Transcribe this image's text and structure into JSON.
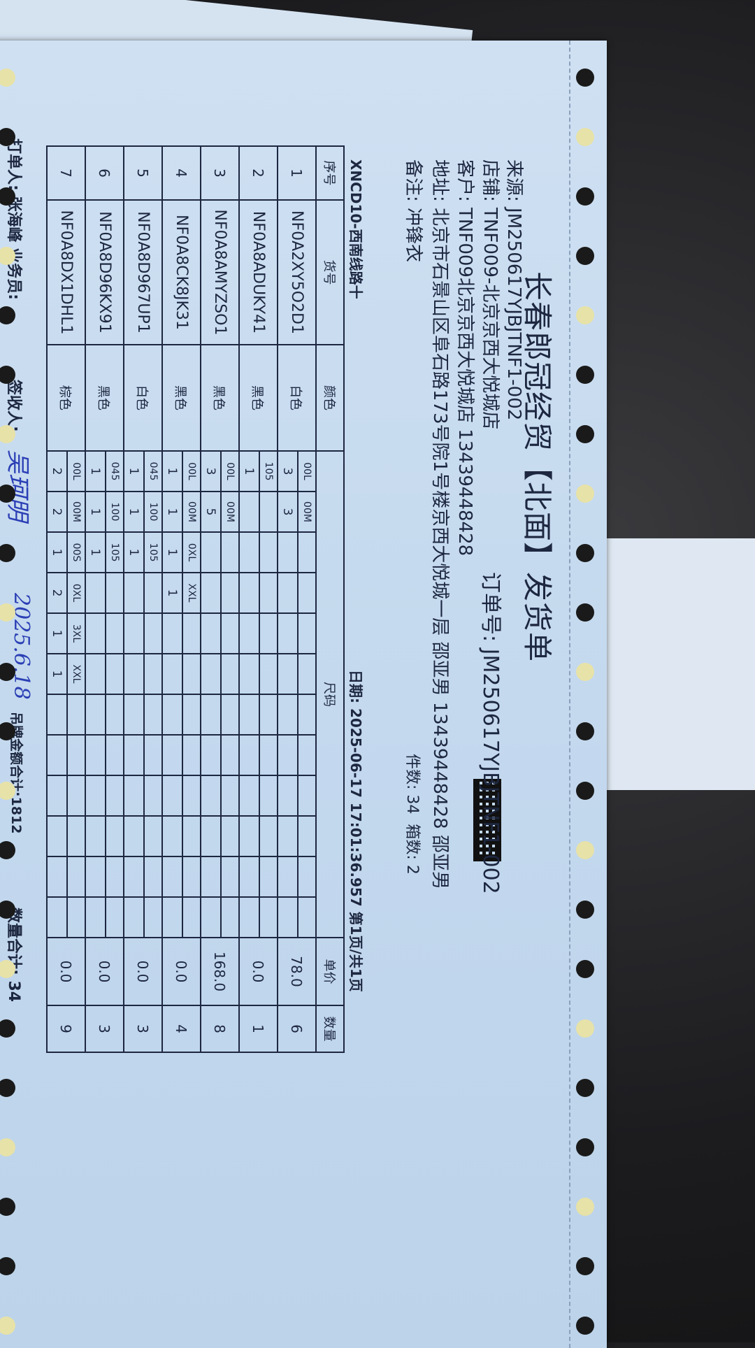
{
  "document": {
    "title": "长春郎冠经贸【北面】发货单",
    "order_no_label": "订单号:",
    "order_no": "JM250617YJBJTNF1-002",
    "source_label": "来源:",
    "source": "JM250617YJBJTNF1-002",
    "store_label": "店铺:",
    "store": "TNF009-北京京西大悦城店",
    "customer_label": "客户:",
    "customer": "TNF009北京京西大悦城店 13439448428",
    "address_label": "地址:",
    "address": "北京市石景山区阜石路173号院1号楼京西大悦城一层 邵亚男 13439448428 邵亚男",
    "remark_label": "备注:",
    "remark": "冲锋衣",
    "pieces_label": "件数:",
    "pieces": "34",
    "boxes_label": "箱数:",
    "boxes": "2",
    "route": "XNCD10-西南线路十",
    "date_label": "日期:",
    "date": "2025-06-17 17:01:36.957",
    "page": "第1页/共1页"
  },
  "table": {
    "headers": {
      "no": "序号",
      "sku": "货号",
      "color": "颜色",
      "size": "尺码",
      "price": "单价",
      "qty": "数量"
    },
    "items": [
      {
        "no": "1",
        "sku": "NF0A2XY5O2D1",
        "color": "白色",
        "sizes": [
          {
            "s": "00L",
            "q": "3"
          },
          {
            "s": "00M",
            "q": "3"
          }
        ],
        "price": "78.0",
        "qty": "6"
      },
      {
        "no": "2",
        "sku": "NF0A8ADUKY41",
        "color": "黑色",
        "sizes": [
          {
            "s": "105",
            "q": "1"
          }
        ],
        "price": "0.0",
        "qty": "1"
      },
      {
        "no": "3",
        "sku": "NF0A8AMYZSO1",
        "color": "黑色",
        "sizes": [
          {
            "s": "00L",
            "q": "3"
          },
          {
            "s": "00M",
            "q": "5"
          }
        ],
        "price": "168.0",
        "qty": "8"
      },
      {
        "no": "4",
        "sku": "NF0A8CK8JK31",
        "color": "黑色",
        "sizes": [
          {
            "s": "00L",
            "q": "1"
          },
          {
            "s": "00M",
            "q": "1"
          },
          {
            "s": "0XL",
            "q": "1"
          },
          {
            "s": "XXL",
            "q": "1"
          }
        ],
        "price": "0.0",
        "qty": "4"
      },
      {
        "no": "5",
        "sku": "NF0A8D967UP1",
        "color": "白色",
        "sizes": [
          {
            "s": "045",
            "q": "1"
          },
          {
            "s": "100",
            "q": "1"
          },
          {
            "s": "105",
            "q": "1"
          }
        ],
        "price": "0.0",
        "qty": "3"
      },
      {
        "no": "6",
        "sku": "NF0A8D96KX91",
        "color": "黑色",
        "sizes": [
          {
            "s": "045",
            "q": "1"
          },
          {
            "s": "100",
            "q": "1"
          },
          {
            "s": "105",
            "q": "1"
          }
        ],
        "price": "0.0",
        "qty": "3"
      },
      {
        "no": "7",
        "sku": "NF0A8DX1DHL1",
        "color": "棕色",
        "sizes": [
          {
            "s": "00L",
            "q": "2"
          },
          {
            "s": "00M",
            "q": "2"
          },
          {
            "s": "00S",
            "q": "1"
          },
          {
            "s": "0XL",
            "q": "2"
          },
          {
            "s": "3XL",
            "q": "1"
          },
          {
            "s": "XXL",
            "q": "1"
          }
        ],
        "price": "0.0",
        "qty": "9"
      }
    ]
  },
  "footer": {
    "printer_label": "打单人:",
    "printer": "张海峰",
    "salesperson_label": "业务员:",
    "receiver_label": "签收人:",
    "signature": "吴珂明",
    "signed_date": "2025.6.18",
    "tag_total_label": "吊牌金额合计:",
    "tag_total": "1812",
    "qty_total_label": "数量合计:",
    "qty_total": "34"
  },
  "colors": {
    "paper": "#c9dcef",
    "ink": "#1d2740",
    "handwriting": "#2b3fb5"
  }
}
